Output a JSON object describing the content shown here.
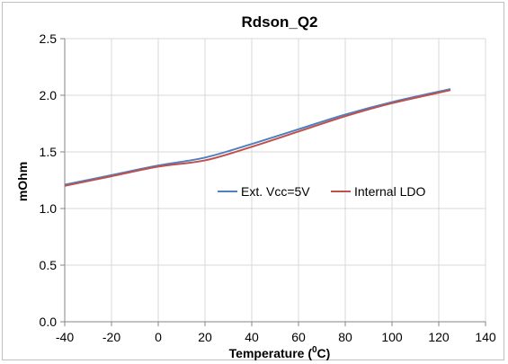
{
  "chart_data": {
    "type": "line",
    "title": "Rdson_Q2",
    "xlabel_main": "Temperature (",
    "xlabel_sup": "0",
    "xlabel_end": "C)",
    "ylabel": "mOhm",
    "xlim": [
      -40,
      140
    ],
    "ylim": [
      0.0,
      2.5
    ],
    "xticks": [
      "-40",
      "-20",
      "0",
      "20",
      "40",
      "60",
      "80",
      "100",
      "120",
      "140"
    ],
    "yticks": [
      "0.0",
      "0.5",
      "1.0",
      "1.5",
      "2.0",
      "2.5"
    ],
    "grid": true,
    "legend_position": "right-middle",
    "series": [
      {
        "name": "Ext. Vcc=5V",
        "color": "#4f81bd",
        "x": [
          -40,
          -20,
          0,
          20,
          40,
          60,
          80,
          100,
          125
        ],
        "y": [
          1.21,
          1.295,
          1.38,
          1.45,
          1.57,
          1.7,
          1.83,
          1.94,
          2.055
        ]
      },
      {
        "name": "Internal LDO",
        "color": "#c0504d",
        "x": [
          -40,
          -20,
          0,
          20,
          40,
          60,
          80,
          100,
          125
        ],
        "y": [
          1.2,
          1.285,
          1.37,
          1.425,
          1.545,
          1.68,
          1.815,
          1.93,
          2.045
        ]
      }
    ]
  }
}
